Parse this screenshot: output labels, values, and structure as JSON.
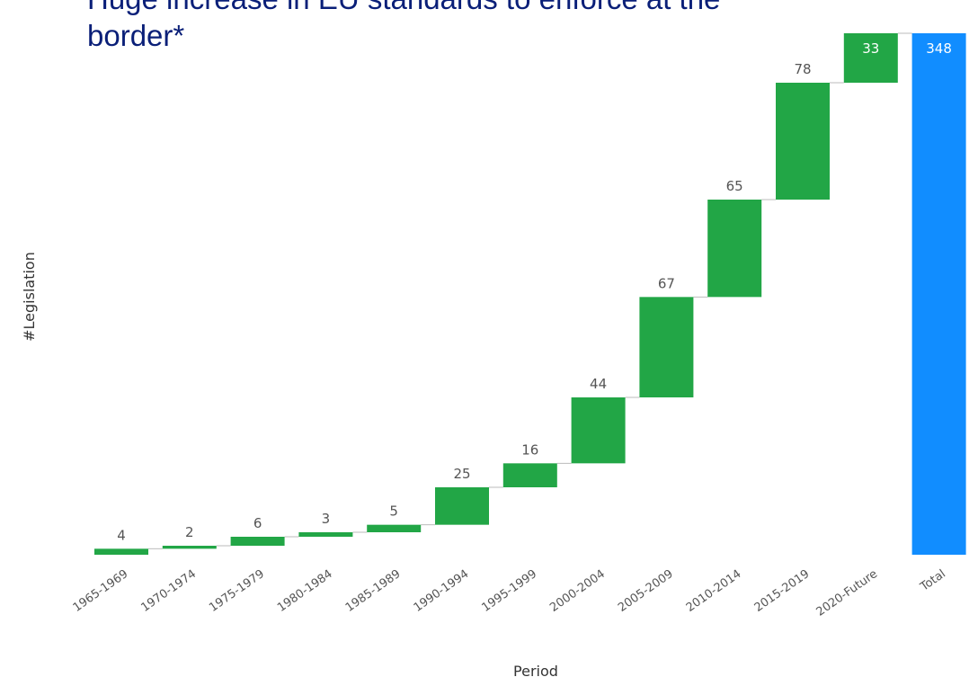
{
  "chart_data": {
    "type": "bar",
    "subtype": "waterfall",
    "title": "Huge increase in EU standards to enforce at the border*",
    "xlabel": "Period",
    "ylabel": "#Legislation",
    "categories": [
      "1965-1969",
      "1970-1974",
      "1975-1979",
      "1980-1984",
      "1985-1989",
      "1990-1994",
      "1995-1999",
      "2000-2004",
      "2005-2009",
      "2010-2014",
      "2015-2019",
      "2020-Future",
      "Total"
    ],
    "values": [
      4,
      2,
      6,
      3,
      5,
      25,
      16,
      44,
      67,
      65,
      78,
      33,
      348
    ],
    "data_labels": [
      "4",
      "2",
      "6",
      "3",
      "5",
      "25",
      "16",
      "44",
      "67",
      "65",
      "78",
      "33",
      "348"
    ],
    "total_index": 12,
    "ylim": [
      0,
      348
    ],
    "grid": false,
    "legend": "none",
    "colors": {
      "increase": "#22a646",
      "total": "#118dff",
      "connector": "#bbbbbb"
    }
  }
}
